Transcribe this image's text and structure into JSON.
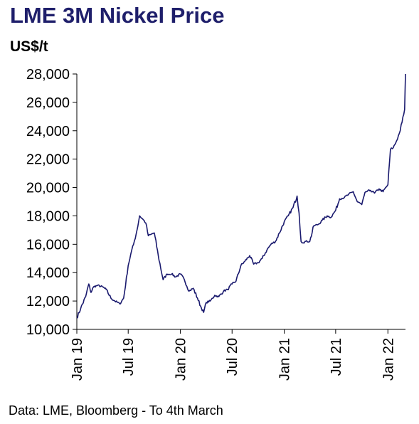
{
  "title": "LME 3M Nickel Price",
  "unit_label": "US$/t",
  "source": "Data: LME, Bloomberg - To 4th March",
  "colors": {
    "line": "#1a1a6e",
    "title": "#1f1f6b",
    "axis": "#000000"
  },
  "chart_data": {
    "type": "line",
    "title": "LME 3M Nickel Price",
    "ylabel": "US$/t",
    "xlabel": "",
    "ylim": [
      10000,
      28000
    ],
    "xlim": [
      "2019-01-01",
      "2022-03-04"
    ],
    "grid": false,
    "y_ticks": [
      {
        "value": 10000,
        "label": "10,000"
      },
      {
        "value": 12000,
        "label": "12,000"
      },
      {
        "value": 14000,
        "label": "14,000"
      },
      {
        "value": 16000,
        "label": "16,000"
      },
      {
        "value": 18000,
        "label": "18,000"
      },
      {
        "value": 20000,
        "label": "20,000"
      },
      {
        "value": 22000,
        "label": "22,000"
      },
      {
        "value": 24000,
        "label": "24,000"
      },
      {
        "value": 26000,
        "label": "26,000"
      },
      {
        "value": 28000,
        "label": "28,000"
      }
    ],
    "x_ticks": [
      {
        "date": "2019-01-01",
        "label": "Jan 19"
      },
      {
        "date": "2019-07-01",
        "label": "Jul 19"
      },
      {
        "date": "2020-01-01",
        "label": "Jan 20"
      },
      {
        "date": "2020-07-01",
        "label": "Jul 20"
      },
      {
        "date": "2021-01-01",
        "label": "Jan 21"
      },
      {
        "date": "2021-07-01",
        "label": "Jul 21"
      },
      {
        "date": "2022-01-01",
        "label": "Jan 22"
      }
    ],
    "series": [
      {
        "x": [
          "2019-01-01",
          "2019-01-15",
          "2019-02-01",
          "2019-02-12",
          "2019-02-20",
          "2019-03-01",
          "2019-03-15",
          "2019-04-01",
          "2019-04-15",
          "2019-05-01",
          "2019-05-15",
          "2019-06-01",
          "2019-06-15",
          "2019-07-01",
          "2019-07-10",
          "2019-07-20",
          "2019-08-01",
          "2019-08-10",
          "2019-08-20",
          "2019-09-01",
          "2019-09-10",
          "2019-09-20",
          "2019-10-01",
          "2019-10-15",
          "2019-11-01",
          "2019-11-15",
          "2019-12-01",
          "2019-12-15",
          "2020-01-01",
          "2020-01-15",
          "2020-02-01",
          "2020-02-15",
          "2020-03-01",
          "2020-03-15",
          "2020-03-23",
          "2020-04-01",
          "2020-04-15",
          "2020-05-01",
          "2020-05-15",
          "2020-06-01",
          "2020-06-15",
          "2020-07-01",
          "2020-07-15",
          "2020-08-01",
          "2020-08-15",
          "2020-09-01",
          "2020-09-15",
          "2020-10-01",
          "2020-10-15",
          "2020-11-01",
          "2020-11-15",
          "2020-12-01",
          "2020-12-15",
          "2021-01-01",
          "2021-01-15",
          "2021-02-01",
          "2021-02-15",
          "2021-02-22",
          "2021-03-01",
          "2021-03-08",
          "2021-03-15",
          "2021-04-01",
          "2021-04-15",
          "2021-05-01",
          "2021-05-15",
          "2021-06-01",
          "2021-06-15",
          "2021-07-01",
          "2021-07-15",
          "2021-08-01",
          "2021-08-15",
          "2021-09-01",
          "2021-09-15",
          "2021-10-01",
          "2021-10-15",
          "2021-11-01",
          "2021-11-15",
          "2021-12-01",
          "2021-12-15",
          "2022-01-01",
          "2022-01-10",
          "2022-01-20",
          "2022-02-01",
          "2022-02-10",
          "2022-02-20",
          "2022-03-01",
          "2022-03-04"
        ],
        "y": [
          10800,
          11500,
          12300,
          13200,
          12600,
          13000,
          13100,
          13000,
          12800,
          12200,
          12000,
          11800,
          12200,
          14500,
          15300,
          16000,
          17000,
          18000,
          17800,
          17500,
          16600,
          16700,
          16800,
          15200,
          13500,
          13900,
          13900,
          13700,
          13900,
          13500,
          12700,
          12900,
          12200,
          11500,
          11200,
          11900,
          12000,
          12400,
          12300,
          12700,
          12800,
          13200,
          13400,
          14500,
          14800,
          15200,
          14600,
          14700,
          15000,
          15600,
          16000,
          16200,
          16800,
          17600,
          18000,
          18600,
          19400,
          18200,
          16200,
          16100,
          16200,
          16200,
          17300,
          17400,
          17700,
          18000,
          17900,
          18400,
          19200,
          19300,
          19500,
          19700,
          19000,
          18800,
          19700,
          19800,
          19600,
          19900,
          19700,
          20200,
          22700,
          22800,
          23300,
          23800,
          24600,
          25500,
          28000
        ]
      }
    ]
  }
}
